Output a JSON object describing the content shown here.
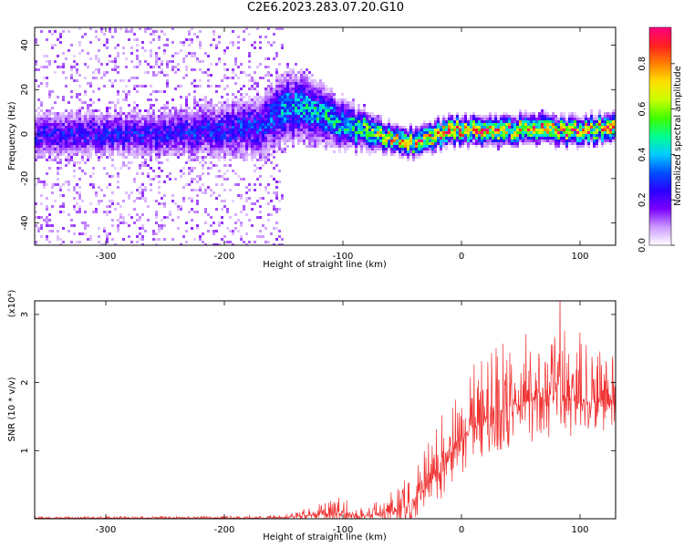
{
  "title": "C2E6.2023.283.07.20.G10",
  "chart_data": [
    {
      "type": "heatmap",
      "xlabel": "Height of straight line (km)",
      "ylabel": "Frequency (Hz)",
      "xlim": [
        -360,
        130
      ],
      "ylim": [
        -50,
        48
      ],
      "xticks": [
        -300,
        -200,
        -100,
        0,
        100
      ],
      "yticks": [
        -40,
        -20,
        0,
        20,
        40
      ],
      "colorbar": {
        "label": "Normalized spectral amplitude",
        "range": [
          0.0,
          0.96
        ],
        "ticks": [
          0.0,
          0.2,
          0.4,
          0.6,
          0.8
        ],
        "colors": [
          "#ffffff",
          "#cc99ff",
          "#7a00ff",
          "#2a00ff",
          "#0050ff",
          "#00ccff",
          "#00ff90",
          "#40ff00",
          "#c8ff00",
          "#ffe000",
          "#ff8000",
          "#ff2020",
          "#ff0080"
        ]
      },
      "ridge": [
        {
          "x": -360,
          "f": 0,
          "spread": 5,
          "amp": 0.22
        },
        {
          "x": -250,
          "f": 0,
          "spread": 5,
          "amp": 0.24
        },
        {
          "x": -170,
          "f": 3,
          "spread": 7,
          "amp": 0.26
        },
        {
          "x": -150,
          "f": 11,
          "spread": 8,
          "amp": 0.34
        },
        {
          "x": -130,
          "f": 12,
          "spread": 7,
          "amp": 0.38
        },
        {
          "x": -110,
          "f": 7,
          "spread": 6,
          "amp": 0.4
        },
        {
          "x": -95,
          "f": 3,
          "spread": 5,
          "amp": 0.42
        },
        {
          "x": -80,
          "f": 2,
          "spread": 4,
          "amp": 0.5
        },
        {
          "x": -60,
          "f": -2,
          "spread": 3,
          "amp": 0.62
        },
        {
          "x": -40,
          "f": -4,
          "spread": 3,
          "amp": 0.7
        },
        {
          "x": -20,
          "f": 0,
          "spread": 3,
          "amp": 0.75
        },
        {
          "x": 0,
          "f": 2,
          "spread": 3,
          "amp": 0.72
        },
        {
          "x": 30,
          "f": 1,
          "spread": 3,
          "amp": 0.74
        },
        {
          "x": 60,
          "f": 3,
          "spread": 3,
          "amp": 0.68
        },
        {
          "x": 90,
          "f": 1,
          "spread": 3,
          "amp": 0.7
        },
        {
          "x": 130,
          "f": 3,
          "spread": 3,
          "amp": 0.7
        }
      ],
      "noise_scatter_xlim": [
        -360,
        -150
      ]
    },
    {
      "type": "line",
      "xlabel": "Height of straight line (km)",
      "ylabel": "SNR (10 * v/v)",
      "y_multiplier": "(x10⁴)",
      "xlim": [
        -360,
        130
      ],
      "ylim": [
        0,
        3.2
      ],
      "xticks": [
        -300,
        -200,
        -100,
        0,
        100
      ],
      "yticks": [
        1,
        2,
        3
      ],
      "color": "#f03030",
      "envelope": [
        {
          "x": -360,
          "base": 0.01,
          "amp": 0.02
        },
        {
          "x": -170,
          "base": 0.01,
          "amp": 0.03
        },
        {
          "x": -140,
          "base": 0.03,
          "amp": 0.05
        },
        {
          "x": -125,
          "base": 0.06,
          "amp": 0.16
        },
        {
          "x": -100,
          "base": 0.08,
          "amp": 0.22
        },
        {
          "x": -80,
          "base": 0.05,
          "amp": 0.12
        },
        {
          "x": -60,
          "base": 0.1,
          "amp": 0.3
        },
        {
          "x": -45,
          "base": 0.18,
          "amp": 0.45
        },
        {
          "x": -30,
          "base": 0.45,
          "amp": 0.6
        },
        {
          "x": -15,
          "base": 0.8,
          "amp": 0.8
        },
        {
          "x": 0,
          "base": 1.2,
          "amp": 0.9
        },
        {
          "x": 20,
          "base": 1.5,
          "amp": 1.0
        },
        {
          "x": 50,
          "base": 1.7,
          "amp": 1.0
        },
        {
          "x": 80,
          "base": 1.85,
          "amp": 1.1
        },
        {
          "x": 100,
          "base": 1.7,
          "amp": 0.9
        },
        {
          "x": 130,
          "base": 1.75,
          "amp": 0.7
        }
      ]
    }
  ]
}
